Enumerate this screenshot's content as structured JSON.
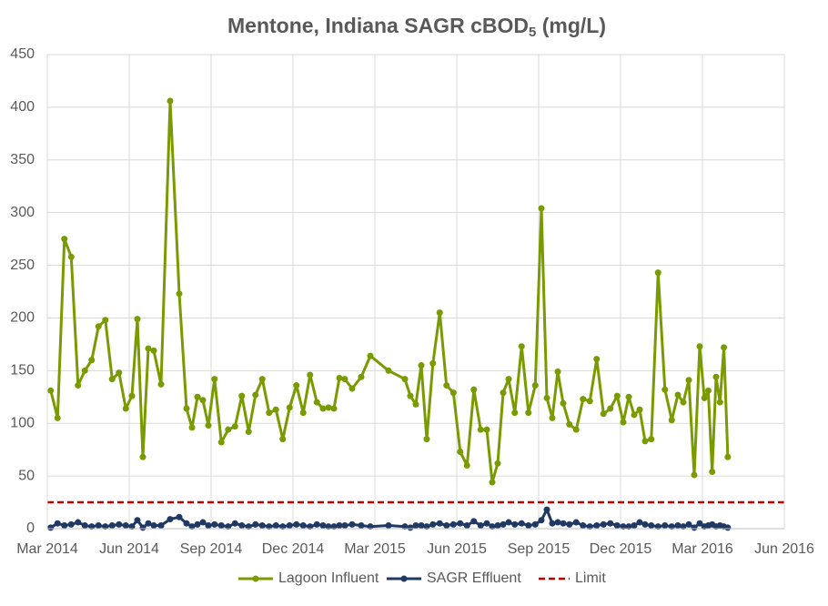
{
  "chart_data": {
    "type": "line",
    "title": "Mentone, Indiana SAGR cBOD",
    "title_subscript": "5",
    "title_suffix": " (mg/L)",
    "x": [
      "2014-03",
      "2014-03",
      "2014-03",
      "2014-03",
      "2014-04",
      "2014-04",
      "2014-04",
      "2014-04",
      "2014-05",
      "2014-05",
      "2014-05",
      "2014-05",
      "2014-06",
      "2014-06",
      "2014-06",
      "2014-06",
      "2014-06",
      "2014-07",
      "2014-07",
      "2014-07",
      "2014-08",
      "2014-08",
      "2014-08",
      "2014-08",
      "2014-08",
      "2014-09",
      "2014-09",
      "2014-09",
      "2014-09",
      "2014-10",
      "2014-10",
      "2014-10",
      "2014-10",
      "2014-11",
      "2014-11",
      "2014-11",
      "2014-11",
      "2014-12",
      "2014-12",
      "2014-12",
      "2014-12",
      "2015-01",
      "2015-01",
      "2015-01",
      "2015-01",
      "2015-01",
      "2015-02",
      "2015-02",
      "2015-02",
      "2015-03",
      "2015-04",
      "2015-04",
      "2015-04",
      "2015-04",
      "2015-04",
      "2015-05",
      "2015-05",
      "2015-05",
      "2015-05",
      "2015-06",
      "2015-06",
      "2015-06",
      "2015-06",
      "2015-07",
      "2015-07",
      "2015-07",
      "2015-07",
      "2015-07",
      "2015-08",
      "2015-08",
      "2015-08",
      "2015-08",
      "2015-09",
      "2015-09",
      "2015-09",
      "2015-09",
      "2015-09",
      "2015-10",
      "2015-10",
      "2015-10",
      "2015-10",
      "2015-11",
      "2015-11",
      "2015-11",
      "2015-11",
      "2015-12",
      "2015-12",
      "2015-12",
      "2015-12",
      "2015-12",
      "2016-01",
      "2016-01",
      "2016-01",
      "2016-01",
      "2016-02",
      "2016-02",
      "2016-02",
      "2016-02",
      "2016-02",
      "2016-03",
      "2016-03",
      "2016-03",
      "2016-03",
      "2016-03",
      "2016-03",
      "2016-03"
    ],
    "series": [
      {
        "name": "Lagoon Influent",
        "color": "#7a9a01",
        "values": [
          131,
          105,
          275,
          258,
          136,
          150,
          160,
          192,
          198,
          142,
          148,
          114,
          126,
          199,
          68,
          171,
          169,
          137,
          406,
          223,
          114,
          96,
          125,
          122,
          98,
          142,
          82,
          94,
          97,
          126,
          92,
          127,
          142,
          110,
          113,
          85,
          115,
          136,
          110,
          146,
          120,
          114,
          115,
          114,
          143,
          142,
          133,
          144,
          164,
          150,
          142,
          126,
          118,
          155,
          85,
          157,
          205,
          136,
          129,
          73,
          60,
          132,
          94,
          94,
          44,
          62,
          129,
          142,
          110,
          173,
          110,
          136,
          304,
          124,
          105,
          149,
          119,
          99,
          94,
          123,
          121,
          161,
          109,
          114,
          126,
          101,
          125,
          108,
          113,
          83,
          85,
          243,
          132,
          103,
          127,
          120,
          141,
          51,
          173,
          124,
          131,
          54,
          144,
          120,
          172,
          68
        ]
      },
      {
        "name": "SAGR Effluent",
        "color": "#1f3864",
        "values": [
          1,
          5,
          3,
          4,
          6,
          3,
          2,
          3,
          2,
          3,
          4,
          3,
          2,
          8,
          1,
          5,
          3,
          3,
          9,
          11,
          5,
          2,
          4,
          6,
          3,
          4,
          3,
          2,
          5,
          3,
          2,
          4,
          3,
          2,
          3,
          2,
          3,
          4,
          3,
          2,
          4,
          3,
          2,
          2,
          3,
          3,
          4,
          3,
          2,
          3,
          2,
          1,
          3,
          3,
          2,
          4,
          5,
          3,
          4,
          5,
          3,
          7,
          3,
          5,
          2,
          3,
          4,
          6,
          4,
          5,
          3,
          4,
          8,
          18,
          5,
          6,
          5,
          4,
          6,
          3,
          2,
          3,
          4,
          5,
          3,
          2,
          2,
          3,
          6,
          4,
          3,
          2,
          3,
          2,
          3,
          2,
          4,
          1,
          5,
          2,
          3,
          4,
          2,
          3,
          2,
          1
        ]
      }
    ],
    "limit": {
      "name": "Limit",
      "value": 25,
      "color": "#c00000"
    },
    "xlim": [
      "2014-03",
      "2016-06"
    ],
    "xticks": [
      {
        "value": "2014-03",
        "label": "Mar 2014"
      },
      {
        "value": "2014-06",
        "label": "Jun 2014"
      },
      {
        "value": "2014-09",
        "label": "Sep 2014"
      },
      {
        "value": "2014-12",
        "label": "Dec 2014"
      },
      {
        "value": "2015-03",
        "label": "Mar 2015"
      },
      {
        "value": "2015-06",
        "label": "Jun 2015"
      },
      {
        "value": "2015-09",
        "label": "Sep 2015"
      },
      {
        "value": "2015-12",
        "label": "Dec 2015"
      },
      {
        "value": "2016-03",
        "label": "Mar 2016"
      },
      {
        "value": "2016-06",
        "label": "Jun 2016"
      }
    ],
    "ylim": [
      0,
      450
    ],
    "yticks": [
      0,
      50,
      100,
      150,
      200,
      250,
      300,
      350,
      400,
      450
    ],
    "grid": true,
    "legend": "bottom"
  }
}
